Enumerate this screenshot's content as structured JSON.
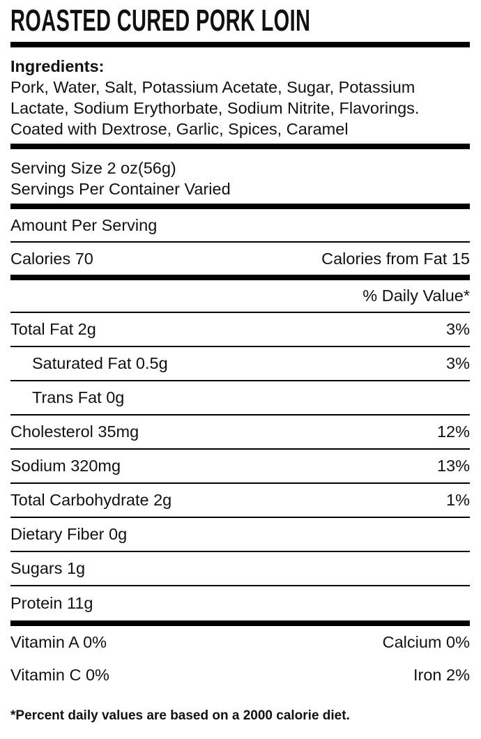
{
  "label": {
    "title": "ROASTED CURED PORK LOIN",
    "ingredients": {
      "heading": "Ingredients:",
      "text": "Pork, Water, Salt, Potassium Acetate, Sugar, Potassium Lactate, Sodium Erythorbate, Sodium Nitrite, Flavorings. Coated with Dextrose, Garlic, Spices, Caramel"
    },
    "serving": {
      "size": "Serving Size 2 oz(56g)",
      "per_container": "Servings Per Container Varied"
    },
    "amount_per_serving": "Amount Per Serving",
    "calories": "Calories 70",
    "calories_from_fat": "Calories from Fat 15",
    "daily_value_header": "% Daily Value*",
    "nutrients": [
      {
        "name": "Total Fat 2g",
        "dv": "3%"
      },
      {
        "name": "Saturated Fat 0.5g",
        "dv": "3%"
      },
      {
        "name": "Trans Fat 0g",
        "dv": ""
      },
      {
        "name": "Cholesterol 35mg",
        "dv": "12%"
      },
      {
        "name": "Sodium 320mg",
        "dv": "13%"
      },
      {
        "name": "Total Carbohydrate 2g",
        "dv": "1%"
      },
      {
        "name": "Dietary Fiber 0g",
        "dv": ""
      },
      {
        "name": "Sugars 1g",
        "dv": ""
      },
      {
        "name": "Protein 11g",
        "dv": ""
      }
    ],
    "vitamins": [
      {
        "left": "Vitamin A 0%",
        "right": "Calcium 0%"
      },
      {
        "left": "Vitamin C 0%",
        "right": "Iron 2%"
      }
    ],
    "footnote": "*Percent daily values are based on a 2000 calorie diet.",
    "colors": {
      "text": "#111111",
      "rule": "#000000",
      "background": "#ffffff"
    }
  }
}
